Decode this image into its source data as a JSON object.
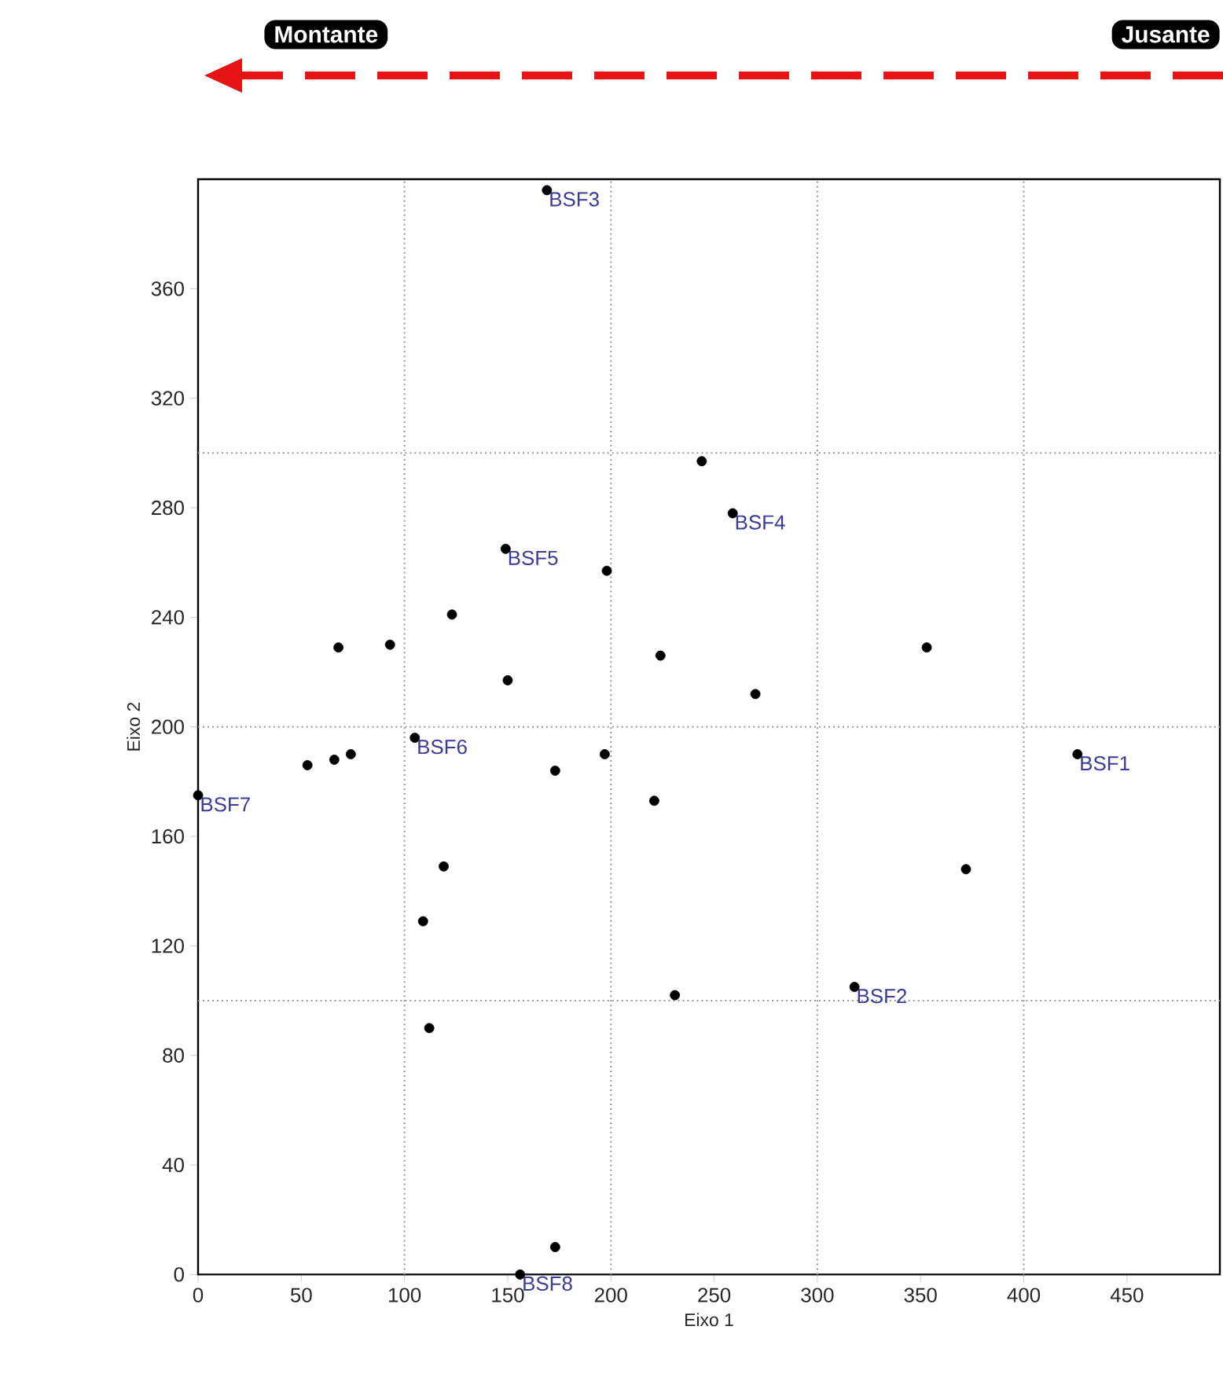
{
  "chart_data": {
    "type": "scatter",
    "xlabel": "Eixo 1",
    "ylabel": "Eixo 2",
    "xlim": [
      0,
      495
    ],
    "ylim": [
      0,
      400
    ],
    "xticks": [
      0,
      50,
      100,
      150,
      200,
      250,
      300,
      350,
      400,
      450
    ],
    "yticks": [
      0,
      40,
      80,
      120,
      160,
      200,
      240,
      280,
      320,
      360
    ],
    "marker": "circle",
    "grid": false,
    "series": [
      {
        "color": "#000000",
        "x": [
          169,
          149,
          198,
          123,
          68,
          93,
          150,
          224,
          244,
          259,
          270,
          353,
          0,
          53,
          66,
          74,
          105,
          173,
          197,
          221,
          119,
          109,
          112,
          231,
          173,
          156,
          426,
          372,
          318
        ],
        "values": [
          396,
          265,
          257,
          241,
          229,
          230,
          217,
          226,
          297,
          278,
          212,
          229,
          175,
          186,
          188,
          190,
          196,
          184,
          190,
          173,
          149,
          129,
          90,
          102,
          10,
          0,
          190,
          148,
          105
        ]
      }
    ],
    "ref_lines": [
      {
        "axis": "x",
        "value": 100,
        "color": "#999999",
        "line_style": "dotted"
      },
      {
        "axis": "x",
        "value": 200,
        "color": "#999999",
        "line_style": "dotted"
      },
      {
        "axis": "x",
        "value": 300,
        "color": "#999999",
        "line_style": "dotted"
      },
      {
        "axis": "x",
        "value": 400,
        "color": "#999999",
        "line_style": "dotted"
      },
      {
        "axis": "y",
        "value": 100,
        "color": "#999999",
        "line_style": "dotted"
      },
      {
        "axis": "y",
        "value": 200,
        "color": "#999999",
        "line_style": "dotted"
      },
      {
        "axis": "y",
        "value": 300,
        "color": "#999999",
        "line_style": "dotted"
      }
    ],
    "annotations": [
      "Montante",
      "Jusante",
      {
        "text": "BSF3",
        "x": 169,
        "y": 396
      },
      {
        "text": "BSF5",
        "x": 149,
        "y": 265
      },
      {
        "text": "BSF4",
        "x": 259,
        "y": 278
      },
      {
        "text": "BSF6",
        "x": 105,
        "y": 196
      },
      {
        "text": "BSF7",
        "x": 0,
        "y": 175
      },
      {
        "text": "BSF1",
        "x": 426,
        "y": 190
      },
      {
        "text": "BSF2",
        "x": 318,
        "y": 105
      },
      {
        "text": "BSF8",
        "x": 156,
        "y": 0
      }
    ]
  }
}
